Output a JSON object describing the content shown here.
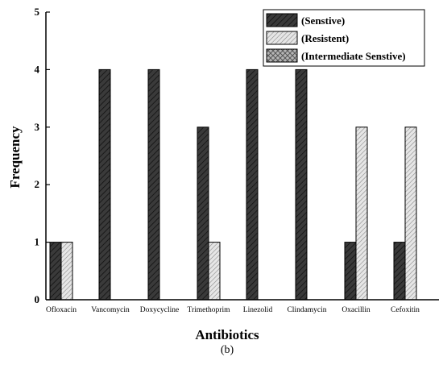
{
  "chart_data": {
    "type": "bar",
    "title": "",
    "xlabel": "Antibiotics",
    "ylabel": "Frequency",
    "caption": "(b)",
    "ylim": [
      0,
      5
    ],
    "yticks": [
      0,
      1,
      2,
      3,
      4,
      5
    ],
    "categories": [
      "Ofloxacin",
      "Vancomycin",
      "Doxycycline",
      "Trimethoprim",
      "Linezolid",
      "Clindamycin",
      "Oxacillin",
      "Cefoxitin"
    ],
    "legend_position": "top-right",
    "series": [
      {
        "name": "(Senstive)",
        "values": [
          1,
          4,
          4,
          3,
          4,
          4,
          1,
          1
        ],
        "color": "#3a3a3a",
        "pattern": "dense-diagonal"
      },
      {
        "name": "(Resistent)",
        "values": [
          1,
          0,
          0,
          1,
          0,
          0,
          3,
          3
        ],
        "color": "#cfcfcf",
        "pattern": "light-diagonal"
      },
      {
        "name": "(Intermediate Senstive)",
        "values": [
          0,
          0,
          0,
          0,
          0,
          0,
          0,
          0
        ],
        "color": "#9a9a9a",
        "pattern": "crosshatch"
      }
    ],
    "grid": false
  }
}
